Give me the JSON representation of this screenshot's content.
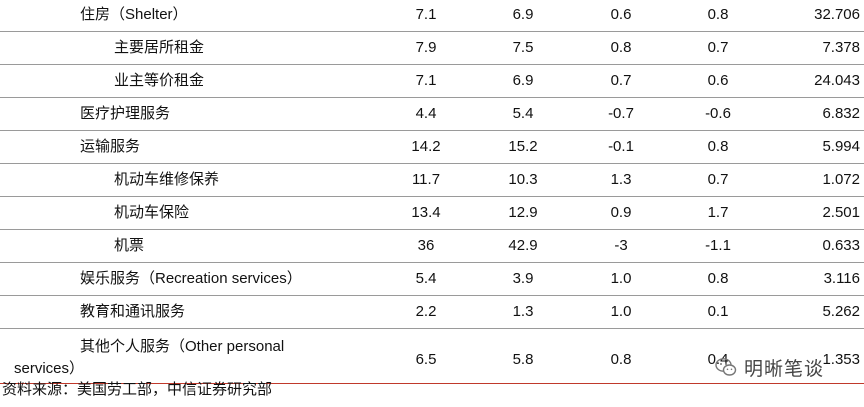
{
  "rows": [
    {
      "label": "住房（Shelter）",
      "indent": 1,
      "v": [
        "7.1",
        "6.9",
        "0.6",
        "0.8",
        "32.706"
      ]
    },
    {
      "label": "主要居所租金",
      "indent": 2,
      "v": [
        "7.9",
        "7.5",
        "0.8",
        "0.7",
        "7.378"
      ]
    },
    {
      "label": "业主等价租金",
      "indent": 2,
      "v": [
        "7.1",
        "6.9",
        "0.7",
        "0.6",
        "24.043"
      ]
    },
    {
      "label": "医疗护理服务",
      "indent": 1,
      "v": [
        "4.4",
        "5.4",
        "-0.7",
        "-0.6",
        "6.832"
      ]
    },
    {
      "label": "运输服务",
      "indent": 1,
      "v": [
        "14.2",
        "15.2",
        "-0.1",
        "0.8",
        "5.994"
      ]
    },
    {
      "label": "机动车维修保养",
      "indent": 2,
      "v": [
        "11.7",
        "10.3",
        "1.3",
        "0.7",
        "1.072"
      ]
    },
    {
      "label": "机动车保险",
      "indent": 2,
      "v": [
        "13.4",
        "12.9",
        "0.9",
        "1.7",
        "2.501"
      ]
    },
    {
      "label": "机票",
      "indent": 2,
      "v": [
        "36",
        "42.9",
        "-3",
        "-1.1",
        "0.633"
      ]
    },
    {
      "label": "娱乐服务（Recreation services）",
      "indent": 1,
      "v": [
        "5.4",
        "3.9",
        "1.0",
        "0.8",
        "3.116"
      ]
    },
    {
      "label": "教育和通讯服务",
      "indent": 1,
      "v": [
        "2.2",
        "1.3",
        "1.0",
        "0.1",
        "5.262"
      ]
    },
    {
      "label": "其他个人服务（Other personal services）",
      "indent": 1,
      "v": [
        "6.5",
        "5.8",
        "0.8",
        "0.4",
        "1.353"
      ]
    }
  ],
  "source_note": "资料来源：美国劳工部，中信证券研究部",
  "watermark": {
    "text": "明晰笔谈",
    "icon": "wechat-icon"
  },
  "colors": {
    "rule": "#9a9a9a",
    "bottom_rule": "#c0392b",
    "text": "#111111"
  }
}
